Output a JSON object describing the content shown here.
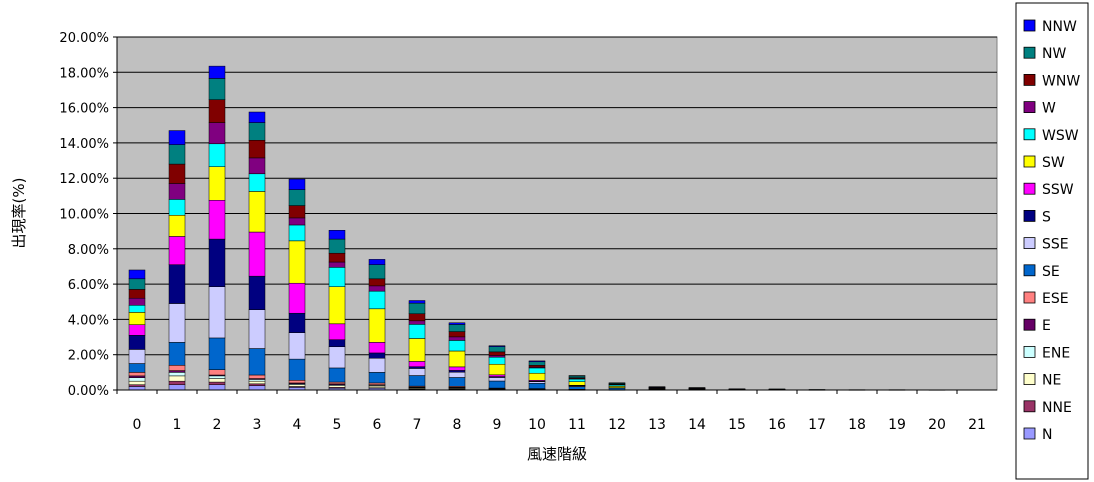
{
  "chart_data": {
    "type": "bar",
    "stacked": true,
    "title": "",
    "xlabel": "風速階級",
    "ylabel": "出現率(%)",
    "ylim": [
      0,
      20
    ],
    "yticks": [
      "0.00%",
      "2.00%",
      "4.00%",
      "6.00%",
      "8.00%",
      "10.00%",
      "12.00%",
      "14.00%",
      "16.00%",
      "18.00%",
      "20.00%"
    ],
    "categories": [
      "0",
      "1",
      "2",
      "3",
      "4",
      "5",
      "6",
      "7",
      "8",
      "9",
      "10",
      "11",
      "12",
      "13",
      "14",
      "15",
      "16",
      "17",
      "18",
      "19",
      "20",
      "21"
    ],
    "grid": true,
    "legend_position": "right",
    "series": [
      {
        "name": "N",
        "color": "#9999FF",
        "values": [
          0.2,
          0.3,
          0.3,
          0.25,
          0.15,
          0.1,
          0.1,
          0.05,
          0.05,
          0.03,
          0.02,
          0.01,
          0.01,
          0,
          0,
          0,
          0,
          0,
          0,
          0,
          0,
          0
        ]
      },
      {
        "name": "NNE",
        "color": "#993366",
        "values": [
          0.1,
          0.2,
          0.15,
          0.1,
          0.05,
          0.05,
          0.03,
          0.02,
          0.02,
          0.01,
          0.01,
          0,
          0,
          0,
          0,
          0,
          0,
          0,
          0,
          0,
          0,
          0
        ]
      },
      {
        "name": "NE",
        "color": "#FFFFCC",
        "values": [
          0.2,
          0.3,
          0.2,
          0.15,
          0.1,
          0.1,
          0.1,
          0.05,
          0.05,
          0.02,
          0.01,
          0.01,
          0,
          0,
          0,
          0,
          0,
          0,
          0,
          0,
          0,
          0
        ]
      },
      {
        "name": "ENE",
        "color": "#CCFFFF",
        "values": [
          0.2,
          0.2,
          0.15,
          0.1,
          0.05,
          0.05,
          0.05,
          0.03,
          0.02,
          0.02,
          0.01,
          0.01,
          0,
          0,
          0,
          0,
          0,
          0,
          0,
          0,
          0,
          0
        ]
      },
      {
        "name": "E",
        "color": "#660066",
        "values": [
          0.1,
          0.1,
          0.05,
          0.05,
          0.05,
          0.05,
          0.02,
          0.02,
          0.02,
          0.01,
          0.01,
          0,
          0,
          0,
          0,
          0,
          0,
          0,
          0,
          0,
          0,
          0
        ]
      },
      {
        "name": "ESE",
        "color": "#FF8080",
        "values": [
          0.2,
          0.3,
          0.3,
          0.2,
          0.15,
          0.1,
          0.1,
          0.05,
          0.05,
          0.02,
          0.02,
          0.01,
          0,
          0,
          0,
          0,
          0,
          0,
          0,
          0,
          0,
          0
        ]
      },
      {
        "name": "SE",
        "color": "#0066CC",
        "values": [
          0.5,
          1.3,
          1.8,
          1.5,
          1.2,
          0.8,
          0.6,
          0.6,
          0.5,
          0.4,
          0.3,
          0.15,
          0.1,
          0.05,
          0.05,
          0.02,
          0.02,
          0.01,
          0.01,
          0.01,
          0.01,
          0
        ]
      },
      {
        "name": "SSE",
        "color": "#CCCCFF",
        "values": [
          0.8,
          2.2,
          2.9,
          2.2,
          1.5,
          1.2,
          0.8,
          0.4,
          0.3,
          0.2,
          0.1,
          0.05,
          0.02,
          0.01,
          0,
          0,
          0,
          0,
          0,
          0,
          0,
          0
        ]
      },
      {
        "name": "S",
        "color": "#000080",
        "values": [
          0.8,
          2.2,
          2.7,
          1.9,
          1.1,
          0.4,
          0.3,
          0.1,
          0.1,
          0.05,
          0.02,
          0.01,
          0,
          0,
          0,
          0,
          0,
          0,
          0,
          0,
          0,
          0
        ]
      },
      {
        "name": "SSW",
        "color": "#FF00FF",
        "values": [
          0.6,
          1.6,
          2.2,
          2.5,
          1.7,
          0.9,
          0.6,
          0.3,
          0.2,
          0.1,
          0.05,
          0.02,
          0,
          0,
          0,
          0,
          0,
          0,
          0,
          0,
          0,
          0
        ]
      },
      {
        "name": "SW",
        "color": "#FFFF00",
        "values": [
          0.7,
          1.2,
          1.9,
          2.3,
          2.4,
          2.1,
          1.9,
          1.3,
          0.9,
          0.6,
          0.4,
          0.2,
          0.08,
          0.03,
          0.02,
          0.01,
          0.01,
          0.01,
          0,
          0,
          0,
          0
        ]
      },
      {
        "name": "WSW",
        "color": "#00FFFF",
        "values": [
          0.4,
          0.9,
          1.3,
          1.0,
          0.9,
          1.1,
          1.0,
          0.8,
          0.6,
          0.4,
          0.3,
          0.15,
          0.08,
          0.03,
          0.02,
          0.01,
          0.01,
          0,
          0,
          0,
          0,
          0
        ]
      },
      {
        "name": "W",
        "color": "#800080",
        "values": [
          0.4,
          0.9,
          1.2,
          0.9,
          0.4,
          0.3,
          0.3,
          0.2,
          0.2,
          0.1,
          0.05,
          0.03,
          0.02,
          0.01,
          0.01,
          0,
          0,
          0,
          0,
          0,
          0,
          0
        ]
      },
      {
        "name": "WNW",
        "color": "#800000",
        "values": [
          0.5,
          1.1,
          1.3,
          1.0,
          0.7,
          0.5,
          0.4,
          0.4,
          0.3,
          0.2,
          0.1,
          0.05,
          0.03,
          0.02,
          0.01,
          0.01,
          0.01,
          0,
          0,
          0,
          0,
          0
        ]
      },
      {
        "name": "NW",
        "color": "#008080",
        "values": [
          0.6,
          1.1,
          1.2,
          1.0,
          0.9,
          0.8,
          0.8,
          0.6,
          0.4,
          0.3,
          0.2,
          0.1,
          0.05,
          0.03,
          0.02,
          0.01,
          0.01,
          0.01,
          0.01,
          0.01,
          0,
          0
        ]
      },
      {
        "name": "NNW",
        "color": "#0000FF",
        "values": [
          0.5,
          0.8,
          0.7,
          0.6,
          0.6,
          0.5,
          0.3,
          0.15,
          0.1,
          0.05,
          0.05,
          0.02,
          0.02,
          0.01,
          0.01,
          0.01,
          0,
          0,
          0,
          0,
          0,
          0
        ]
      }
    ]
  }
}
